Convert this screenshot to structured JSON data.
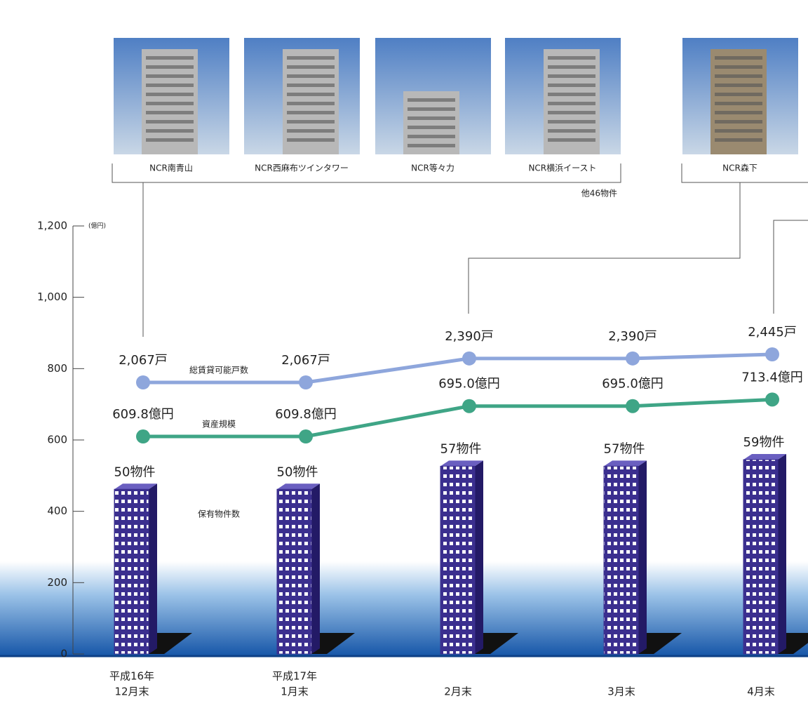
{
  "chart_data": {
    "type": "line",
    "unit_label": "(億円)",
    "ylim": [
      0,
      1200
    ],
    "yticks": [
      0,
      200,
      400,
      600,
      800,
      {
        "value": 1000,
        "label": "1,000"
      },
      {
        "value": 1200,
        "label": "1,200"
      }
    ],
    "categories": [
      "12月末",
      "1月末",
      "2月末",
      "3月末",
      "4月末"
    ],
    "year_labels": [
      "平成16年",
      "平成17年",
      null,
      null,
      null
    ],
    "series": [
      {
        "name": "総賃貸可能戸数",
        "color": "#8ea6dc",
        "axis": "y2",
        "values": [
          2067,
          2067,
          2390,
          2390,
          2445
        ],
        "value_labels": [
          "2,067戸",
          "2,067戸",
          "2,390戸",
          "2,390戸",
          "2,445戸"
        ]
      },
      {
        "name": "資産規模",
        "color": "#3fa586",
        "values": [
          609.8,
          609.8,
          695.0,
          695.0,
          713.4
        ],
        "value_labels": [
          "609.8億円",
          "609.8億円",
          "695.0億円",
          "695.0億円",
          "713.4億円"
        ]
      },
      {
        "name": "保有物件数",
        "type": "bar",
        "color": "#3b2f8f",
        "values": [
          50,
          50,
          57,
          57,
          59
        ],
        "value_labels": [
          "50物件",
          "50物件",
          "57物件",
          "57物件",
          "59物件"
        ]
      }
    ]
  },
  "photos": [
    {
      "caption": "NCR南青山"
    },
    {
      "caption": "NCR西麻布ツインタワー"
    },
    {
      "caption": "NCR等々力"
    },
    {
      "caption": "NCR横浜イースト"
    },
    {
      "caption": "NCR森下"
    }
  ],
  "photos_note": "他46物件"
}
